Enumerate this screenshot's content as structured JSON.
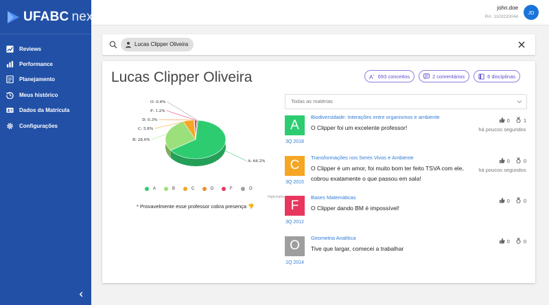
{
  "app": {
    "logo_text": "UFABC",
    "logo_sub": "next",
    "accent": "#2150a6"
  },
  "sidebar": {
    "items": [
      {
        "label": "Reviews",
        "icon": "chart-line-icon"
      },
      {
        "label": "Performance",
        "icon": "bar-chart-icon"
      },
      {
        "label": "Planejamento",
        "icon": "document-icon"
      },
      {
        "label": "Meus histórico",
        "icon": "history-icon"
      },
      {
        "label": "Dados da Matrícula",
        "icon": "id-card-icon"
      },
      {
        "label": "Configurações",
        "icon": "gear-icon"
      }
    ],
    "collapse_icon": "chevron-left-icon"
  },
  "header": {
    "username": "john.doe",
    "ra": "RA: 1100220044",
    "avatar_initials": "JD"
  },
  "search": {
    "chip_label": "Lucas Clipper Oliveira"
  },
  "teacher": {
    "name": "Lucas Clipper Oliveira",
    "badges": {
      "concepts": "693 conceitos",
      "comments": "2 comentários",
      "disciplines": "6 disciplinas"
    }
  },
  "chart_data": {
    "type": "pie",
    "title": "",
    "slices": [
      {
        "name": "A",
        "value": 64.2,
        "label": "A: 64.2%",
        "color": "#2ecc71"
      },
      {
        "name": "B",
        "value": 28.0,
        "label": "B: 28.0%",
        "color": "#9be07a"
      },
      {
        "name": "C",
        "value": 5.8,
        "label": "C: 5.8%",
        "color": "#f5a623"
      },
      {
        "name": "D",
        "value": 0.3,
        "label": "D: 0.3%",
        "color": "#f28c28"
      },
      {
        "name": "F",
        "value": 1.2,
        "label": "F: 1.2%",
        "color": "#e8365d"
      },
      {
        "name": "O",
        "value": 0.6,
        "label": "O: 0.6%",
        "color": "#9e9e9e"
      }
    ],
    "legend": [
      "A",
      "B",
      "C",
      "D",
      "F",
      "O"
    ],
    "legend_position": "bottom",
    "credit": "Highcharts.com"
  },
  "note": {
    "text": "* Provavelmente esse professor cobra presença",
    "thumb": "👎"
  },
  "filter": {
    "value": "Todas as matérias"
  },
  "comments": [
    {
      "grade": "A",
      "color": "#2ecc71",
      "season": "3Q 2018",
      "subject": "Biodiversidade: Interações entre organismos e ambiente",
      "text": "O Clipper foi um excelente professor!",
      "likes": "0",
      "recommendations": "1",
      "time": "há poucos segundos"
    },
    {
      "grade": "C",
      "color": "#f5a623",
      "season": "3Q 2015",
      "subject": "Transformações nos Seres Vivos e Ambiente",
      "text": "O Clipper é um amor, foi muito bom ter feito TSVA com ele, cobrou exatamente o que passou em sala!",
      "likes": "0",
      "recommendations": "0",
      "time": "há poucos segundos"
    },
    {
      "grade": "F",
      "color": "#e8365d",
      "season": "3Q 2012",
      "subject": "Bases Matemáticas",
      "text": "O Clipper dando BM é impossível!",
      "likes": "0",
      "recommendations": "0",
      "time": ""
    },
    {
      "grade": "O",
      "color": "#9e9e9e",
      "season": "1Q 2014",
      "subject": "Geometria Analítica",
      "text": "Tive que largar, comecei a trabalhar",
      "likes": "0",
      "recommendations": "0",
      "time": ""
    }
  ]
}
